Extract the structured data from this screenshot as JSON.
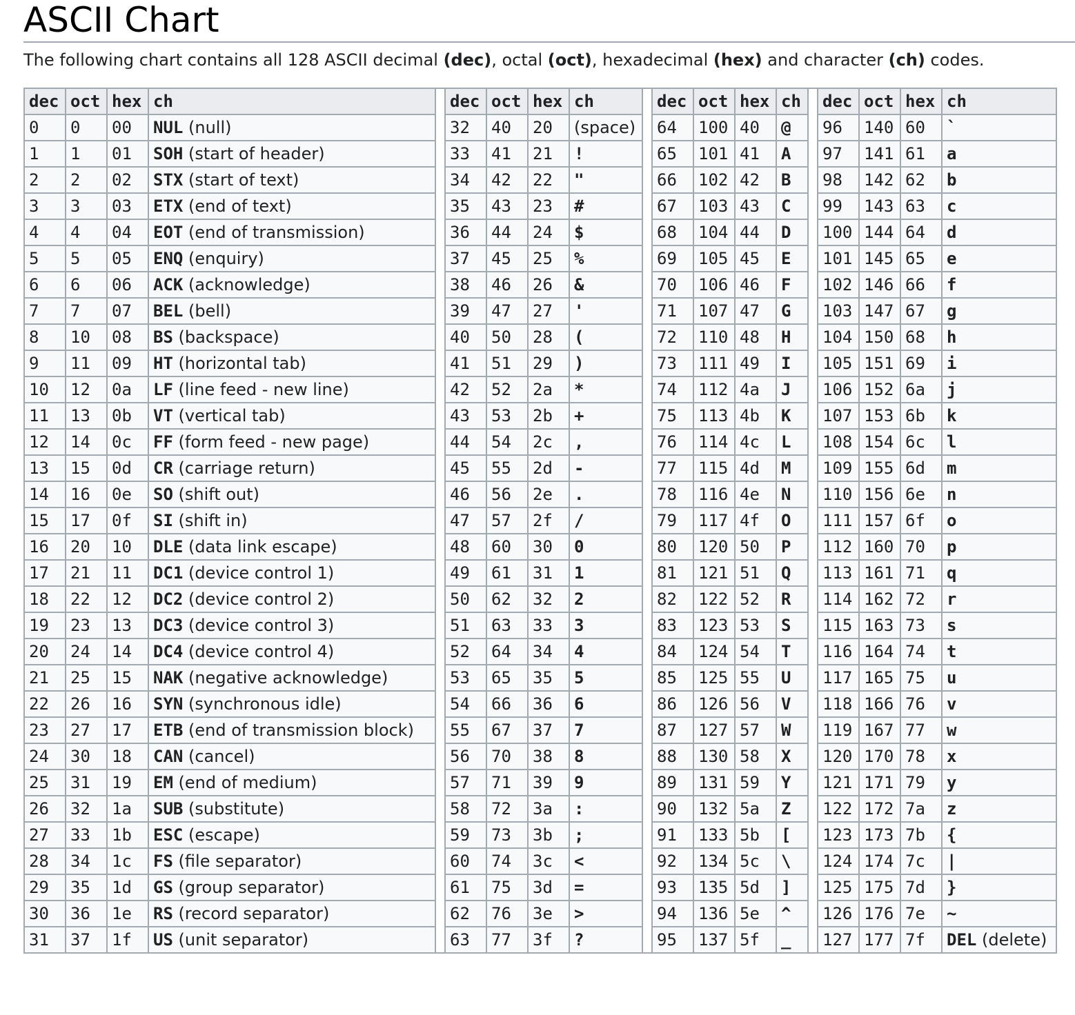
{
  "page": {
    "title": "ASCII Chart",
    "intro": {
      "t1": "The following chart contains all 128 ASCII decimal ",
      "b1": "(dec)",
      "t2": ", octal ",
      "b2": "(oct)",
      "t3": ", hexadecimal ",
      "b3": "(hex)",
      "t4": " and character ",
      "b4": "(ch)",
      "t5": " codes."
    }
  },
  "table": {
    "headers": [
      "dec",
      "oct",
      "hex",
      "ch"
    ],
    "rows": [
      [
        "0",
        "0",
        "00",
        "NUL",
        "(null)"
      ],
      [
        "1",
        "1",
        "01",
        "SOH",
        "(start of header)"
      ],
      [
        "2",
        "2",
        "02",
        "STX",
        "(start of text)"
      ],
      [
        "3",
        "3",
        "03",
        "ETX",
        "(end of text)"
      ],
      [
        "4",
        "4",
        "04",
        "EOT",
        "(end of transmission)"
      ],
      [
        "5",
        "5",
        "05",
        "ENQ",
        "(enquiry)"
      ],
      [
        "6",
        "6",
        "06",
        "ACK",
        "(acknowledge)"
      ],
      [
        "7",
        "7",
        "07",
        "BEL",
        "(bell)"
      ],
      [
        "8",
        "10",
        "08",
        "BS",
        "(backspace)"
      ],
      [
        "9",
        "11",
        "09",
        "HT",
        "(horizontal tab)"
      ],
      [
        "10",
        "12",
        "0a",
        "LF",
        "(line feed - new line)"
      ],
      [
        "11",
        "13",
        "0b",
        "VT",
        "(vertical tab)"
      ],
      [
        "12",
        "14",
        "0c",
        "FF",
        "(form feed - new page)"
      ],
      [
        "13",
        "15",
        "0d",
        "CR",
        "(carriage return)"
      ],
      [
        "14",
        "16",
        "0e",
        "SO",
        "(shift out)"
      ],
      [
        "15",
        "17",
        "0f",
        "SI",
        "(shift in)"
      ],
      [
        "16",
        "20",
        "10",
        "DLE",
        "(data link escape)"
      ],
      [
        "17",
        "21",
        "11",
        "DC1",
        "(device control 1)"
      ],
      [
        "18",
        "22",
        "12",
        "DC2",
        "(device control 2)"
      ],
      [
        "19",
        "23",
        "13",
        "DC3",
        "(device control 3)"
      ],
      [
        "20",
        "24",
        "14",
        "DC4",
        "(device control 4)"
      ],
      [
        "21",
        "25",
        "15",
        "NAK",
        "(negative acknowledge)"
      ],
      [
        "22",
        "26",
        "16",
        "SYN",
        "(synchronous idle)"
      ],
      [
        "23",
        "27",
        "17",
        "ETB",
        "(end of transmission block)"
      ],
      [
        "24",
        "30",
        "18",
        "CAN",
        "(cancel)"
      ],
      [
        "25",
        "31",
        "19",
        "EM",
        "(end of medium)"
      ],
      [
        "26",
        "32",
        "1a",
        "SUB",
        "(substitute)"
      ],
      [
        "27",
        "33",
        "1b",
        "ESC",
        "(escape)"
      ],
      [
        "28",
        "34",
        "1c",
        "FS",
        "(file separator)"
      ],
      [
        "29",
        "35",
        "1d",
        "GS",
        "(group separator)"
      ],
      [
        "30",
        "36",
        "1e",
        "RS",
        "(record separator)"
      ],
      [
        "31",
        "37",
        "1f",
        "US",
        "(unit separator)"
      ],
      [
        "32",
        "40",
        "20",
        "",
        "(space)"
      ],
      [
        "33",
        "41",
        "21",
        "!",
        ""
      ],
      [
        "34",
        "42",
        "22",
        "\"",
        ""
      ],
      [
        "35",
        "43",
        "23",
        "#",
        ""
      ],
      [
        "36",
        "44",
        "24",
        "$",
        ""
      ],
      [
        "37",
        "45",
        "25",
        "%",
        ""
      ],
      [
        "38",
        "46",
        "26",
        "&",
        ""
      ],
      [
        "39",
        "47",
        "27",
        "'",
        ""
      ],
      [
        "40",
        "50",
        "28",
        "(",
        ""
      ],
      [
        "41",
        "51",
        "29",
        ")",
        ""
      ],
      [
        "42",
        "52",
        "2a",
        "*",
        ""
      ],
      [
        "43",
        "53",
        "2b",
        "+",
        ""
      ],
      [
        "44",
        "54",
        "2c",
        ",",
        ""
      ],
      [
        "45",
        "55",
        "2d",
        "-",
        ""
      ],
      [
        "46",
        "56",
        "2e",
        ".",
        ""
      ],
      [
        "47",
        "57",
        "2f",
        "/",
        ""
      ],
      [
        "48",
        "60",
        "30",
        "0",
        ""
      ],
      [
        "49",
        "61",
        "31",
        "1",
        ""
      ],
      [
        "50",
        "62",
        "32",
        "2",
        ""
      ],
      [
        "51",
        "63",
        "33",
        "3",
        ""
      ],
      [
        "52",
        "64",
        "34",
        "4",
        ""
      ],
      [
        "53",
        "65",
        "35",
        "5",
        ""
      ],
      [
        "54",
        "66",
        "36",
        "6",
        ""
      ],
      [
        "55",
        "67",
        "37",
        "7",
        ""
      ],
      [
        "56",
        "70",
        "38",
        "8",
        ""
      ],
      [
        "57",
        "71",
        "39",
        "9",
        ""
      ],
      [
        "58",
        "72",
        "3a",
        ":",
        ""
      ],
      [
        "59",
        "73",
        "3b",
        ";",
        ""
      ],
      [
        "60",
        "74",
        "3c",
        "<",
        ""
      ],
      [
        "61",
        "75",
        "3d",
        "=",
        ""
      ],
      [
        "62",
        "76",
        "3e",
        ">",
        ""
      ],
      [
        "63",
        "77",
        "3f",
        "?",
        ""
      ],
      [
        "64",
        "100",
        "40",
        "@",
        ""
      ],
      [
        "65",
        "101",
        "41",
        "A",
        ""
      ],
      [
        "66",
        "102",
        "42",
        "B",
        ""
      ],
      [
        "67",
        "103",
        "43",
        "C",
        ""
      ],
      [
        "68",
        "104",
        "44",
        "D",
        ""
      ],
      [
        "69",
        "105",
        "45",
        "E",
        ""
      ],
      [
        "70",
        "106",
        "46",
        "F",
        ""
      ],
      [
        "71",
        "107",
        "47",
        "G",
        ""
      ],
      [
        "72",
        "110",
        "48",
        "H",
        ""
      ],
      [
        "73",
        "111",
        "49",
        "I",
        ""
      ],
      [
        "74",
        "112",
        "4a",
        "J",
        ""
      ],
      [
        "75",
        "113",
        "4b",
        "K",
        ""
      ],
      [
        "76",
        "114",
        "4c",
        "L",
        ""
      ],
      [
        "77",
        "115",
        "4d",
        "M",
        ""
      ],
      [
        "78",
        "116",
        "4e",
        "N",
        ""
      ],
      [
        "79",
        "117",
        "4f",
        "O",
        ""
      ],
      [
        "80",
        "120",
        "50",
        "P",
        ""
      ],
      [
        "81",
        "121",
        "51",
        "Q",
        ""
      ],
      [
        "82",
        "122",
        "52",
        "R",
        ""
      ],
      [
        "83",
        "123",
        "53",
        "S",
        ""
      ],
      [
        "84",
        "124",
        "54",
        "T",
        ""
      ],
      [
        "85",
        "125",
        "55",
        "U",
        ""
      ],
      [
        "86",
        "126",
        "56",
        "V",
        ""
      ],
      [
        "87",
        "127",
        "57",
        "W",
        ""
      ],
      [
        "88",
        "130",
        "58",
        "X",
        ""
      ],
      [
        "89",
        "131",
        "59",
        "Y",
        ""
      ],
      [
        "90",
        "132",
        "5a",
        "Z",
        ""
      ],
      [
        "91",
        "133",
        "5b",
        "[",
        ""
      ],
      [
        "92",
        "134",
        "5c",
        "\\",
        ""
      ],
      [
        "93",
        "135",
        "5d",
        "]",
        ""
      ],
      [
        "94",
        "136",
        "5e",
        "^",
        ""
      ],
      [
        "95",
        "137",
        "5f",
        "_",
        ""
      ],
      [
        "96",
        "140",
        "60",
        "`",
        ""
      ],
      [
        "97",
        "141",
        "61",
        "a",
        ""
      ],
      [
        "98",
        "142",
        "62",
        "b",
        ""
      ],
      [
        "99",
        "143",
        "63",
        "c",
        ""
      ],
      [
        "100",
        "144",
        "64",
        "d",
        ""
      ],
      [
        "101",
        "145",
        "65",
        "e",
        ""
      ],
      [
        "102",
        "146",
        "66",
        "f",
        ""
      ],
      [
        "103",
        "147",
        "67",
        "g",
        ""
      ],
      [
        "104",
        "150",
        "68",
        "h",
        ""
      ],
      [
        "105",
        "151",
        "69",
        "i",
        ""
      ],
      [
        "106",
        "152",
        "6a",
        "j",
        ""
      ],
      [
        "107",
        "153",
        "6b",
        "k",
        ""
      ],
      [
        "108",
        "154",
        "6c",
        "l",
        ""
      ],
      [
        "109",
        "155",
        "6d",
        "m",
        ""
      ],
      [
        "110",
        "156",
        "6e",
        "n",
        ""
      ],
      [
        "111",
        "157",
        "6f",
        "o",
        ""
      ],
      [
        "112",
        "160",
        "70",
        "p",
        ""
      ],
      [
        "113",
        "161",
        "71",
        "q",
        ""
      ],
      [
        "114",
        "162",
        "72",
        "r",
        ""
      ],
      [
        "115",
        "163",
        "73",
        "s",
        ""
      ],
      [
        "116",
        "164",
        "74",
        "t",
        ""
      ],
      [
        "117",
        "165",
        "75",
        "u",
        ""
      ],
      [
        "118",
        "166",
        "76",
        "v",
        ""
      ],
      [
        "119",
        "167",
        "77",
        "w",
        ""
      ],
      [
        "120",
        "170",
        "78",
        "x",
        ""
      ],
      [
        "121",
        "171",
        "79",
        "y",
        ""
      ],
      [
        "122",
        "172",
        "7a",
        "z",
        ""
      ],
      [
        "123",
        "173",
        "7b",
        "{",
        ""
      ],
      [
        "124",
        "174",
        "7c",
        "|",
        ""
      ],
      [
        "125",
        "175",
        "7d",
        "}",
        ""
      ],
      [
        "126",
        "176",
        "7e",
        "~",
        ""
      ],
      [
        "127",
        "177",
        "7f",
        "DEL",
        "(delete)"
      ]
    ]
  }
}
